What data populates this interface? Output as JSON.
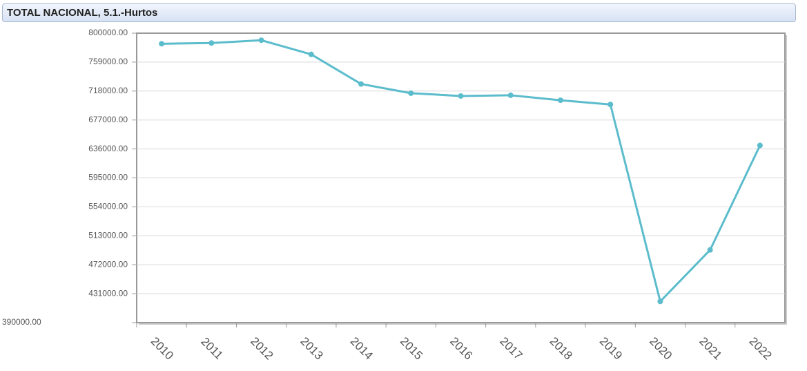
{
  "chart_data": {
    "type": "line",
    "title": "TOTAL NACIONAL, 5.1.-Hurtos",
    "categories": [
      "2010",
      "2011",
      "2012",
      "2013",
      "2014",
      "2015",
      "2016",
      "2017",
      "2018",
      "2019",
      "2020",
      "2021",
      "2022"
    ],
    "series": [
      {
        "name": "Hurtos",
        "color": "#5bbccc",
        "values": [
          785000,
          786000,
          790000,
          770000,
          728000,
          715000,
          711000,
          712000,
          705000,
          699000,
          420000,
          493000,
          641000
        ]
      }
    ],
    "ylim": [
      390000,
      800000
    ],
    "yticks": [
      {
        "value": 390000,
        "label": "390000.00"
      },
      {
        "value": 431000,
        "label": "431000.00"
      },
      {
        "value": 472000,
        "label": "472000.00"
      },
      {
        "value": 513000,
        "label": "513000.00"
      },
      {
        "value": 554000,
        "label": "554000.00"
      },
      {
        "value": 595000,
        "label": "595000.00"
      },
      {
        "value": 636000,
        "label": "636000.00"
      },
      {
        "value": 677000,
        "label": "677000.00"
      },
      {
        "value": 718000,
        "label": "718000.00"
      },
      {
        "value": 759000,
        "label": "759000.00"
      },
      {
        "value": 800000,
        "label": "800000.00"
      }
    ],
    "grid": true
  }
}
